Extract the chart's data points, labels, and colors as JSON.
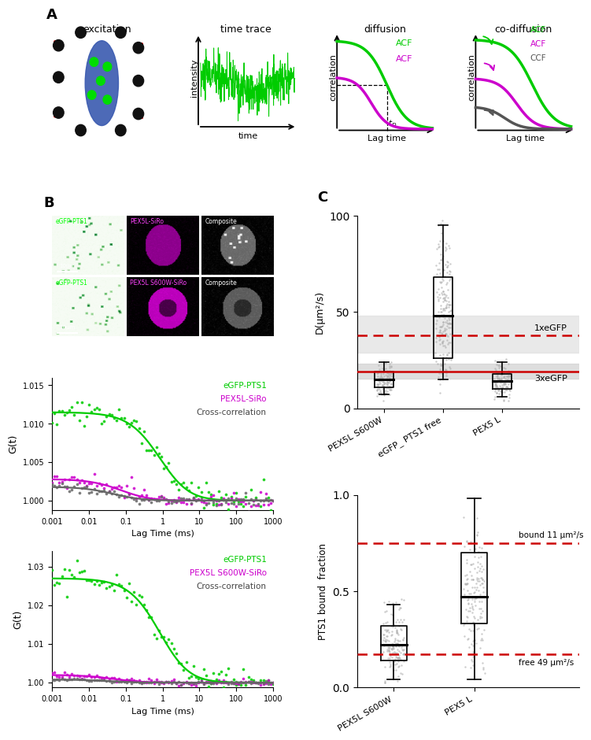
{
  "panel_A": {
    "title_excitation": "excitation",
    "title_timetrace": "time trace",
    "title_diffusion": "diffusion",
    "title_codiffusion": "co-diffusion",
    "xlabel_timetrace": "time",
    "ylabel_timetrace": "intensity",
    "xlabel_diffusion": "Lag time",
    "ylabel_diffusion": "correlation",
    "xlabel_codiffusion": "Lag time",
    "ylabel_codiffusion": "correlation"
  },
  "panel_C_top": {
    "categories": [
      "PEX5L S600W",
      "eGFP_ PTS1 free",
      "PEX5 L"
    ],
    "group_medians": [
      15.0,
      48.0,
      14.0
    ],
    "group_q1": [
      11.0,
      26.0,
      10.0
    ],
    "group_q3": [
      19.0,
      68.0,
      18.0
    ],
    "group_whisker_lo": [
      7.0,
      15.0,
      6.0
    ],
    "group_whisker_hi": [
      24.0,
      95.0,
      24.0
    ],
    "ref_line_3x": 19.0,
    "ref_band_3x_lo": 15.5,
    "ref_band_3x_hi": 23.0,
    "ref_dotted_1x": 38.0,
    "ref_band_1x_lo": 29.0,
    "ref_band_1x_hi": 48.0,
    "label_1xeGFP": "1xeGFP",
    "label_3xeGFP": "3xeGFP",
    "ylabel": "D(μm²/s)",
    "ylim": [
      0,
      100
    ]
  },
  "panel_C_bottom": {
    "categories": [
      "PEX5L S600W",
      "PEX5 L"
    ],
    "group_medians": [
      0.22,
      0.47
    ],
    "group_q1": [
      0.14,
      0.33
    ],
    "group_q3": [
      0.32,
      0.7
    ],
    "group_whisker_lo": [
      0.04,
      0.04
    ],
    "group_whisker_hi": [
      0.43,
      0.98
    ],
    "ref_line_bound": 0.75,
    "ref_line_free": 0.17,
    "label_bound": "bound 11 μm²/s",
    "label_free": "free 49 μm²/s",
    "ylabel": "PTS1 bound  fraction",
    "ylim": [
      0.0,
      1.0
    ]
  },
  "panel_FCS1": {
    "ylabel": "G(t)",
    "xlabel": "Lag Time (ms)",
    "legend_green": "eGFP-PTS1",
    "legend_magenta": "PEX5L-SiRo",
    "legend_gray": "Cross-correlation",
    "green_amplitude": 0.0115,
    "magenta_amplitude": 0.0028,
    "gray_amplitude": 0.0018,
    "green_td": 0.9,
    "magenta_td": 0.08,
    "gray_td": 0.05,
    "ylim": [
      0.9988,
      1.016
    ],
    "yticks": [
      1.0,
      1.005,
      1.01,
      1.015
    ],
    "xticks": [
      0.001,
      0.01,
      0.1,
      1,
      10,
      100,
      1000
    ],
    "xticklabels": [
      "0.001",
      "0.01",
      "0.1",
      "1",
      "10",
      "100",
      "1000"
    ]
  },
  "panel_FCS2": {
    "ylabel": "G(t)",
    "xlabel": "Lag Time (ms)",
    "legend_green": "eGFP-PTS1",
    "legend_magenta": "PEX5L S600W-SiRo",
    "legend_gray": "Cross-correlation",
    "green_amplitude": 0.027,
    "magenta_amplitude": 0.002,
    "gray_amplitude": 0.0008,
    "green_td": 0.9,
    "magenta_td": 0.05,
    "gray_td": 0.04,
    "ylim": [
      0.9988,
      1.034
    ],
    "yticks": [
      1.0,
      1.01,
      1.02,
      1.03
    ],
    "xticks": [
      0.001,
      0.01,
      0.1,
      1,
      10,
      100,
      1000
    ],
    "xticklabels": [
      "0.001",
      "0.01",
      "0.1",
      "1",
      "10",
      "100",
      "1000"
    ]
  },
  "colors": {
    "green": "#00CC00",
    "magenta": "#CC00CC",
    "gray": "#666666",
    "red_line": "#CC0000",
    "scatter_gray": "#AAAAAA",
    "band_gray_light": "#E8E8E8",
    "band_gray_dark": "#D8D8D8"
  }
}
